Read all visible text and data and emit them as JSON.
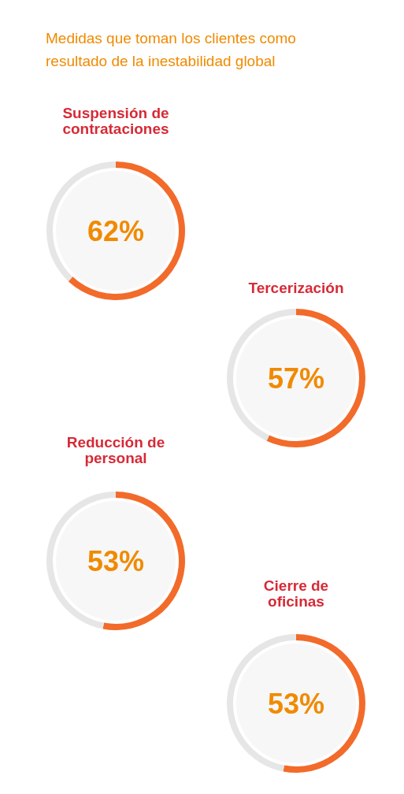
{
  "chart_data": [
    {
      "type": "other",
      "title": "Medidas que toman los clientes como resultado de la inestabilidad global"
    },
    {
      "type": "donut",
      "title": "Suspensión de contrataciones",
      "categories": [
        null,
        null
      ],
      "values": [
        62,
        38
      ],
      "colors": [
        "#f26b2a",
        "#e6e6e6"
      ],
      "annotations": [
        "62%"
      ]
    },
    {
      "type": "donut",
      "title": "Tercerización",
      "categories": [
        null,
        null
      ],
      "values": [
        57,
        43
      ],
      "colors": [
        "#f26b2a",
        "#e6e6e6"
      ],
      "annotations": [
        "57%"
      ]
    },
    {
      "type": "donut",
      "title": "Reducción de personal",
      "categories": [
        null,
        null
      ],
      "values": [
        53,
        47
      ],
      "colors": [
        "#f26b2a",
        "#e6e6e6"
      ],
      "annotations": [
        "53%"
      ]
    },
    {
      "type": "donut",
      "title": "Cierre de oficinas",
      "categories": [
        null,
        null
      ],
      "values": [
        53,
        47
      ],
      "colors": [
        "#f26b2a",
        "#e6e6e6"
      ],
      "annotations": [
        "53%"
      ]
    }
  ]
}
